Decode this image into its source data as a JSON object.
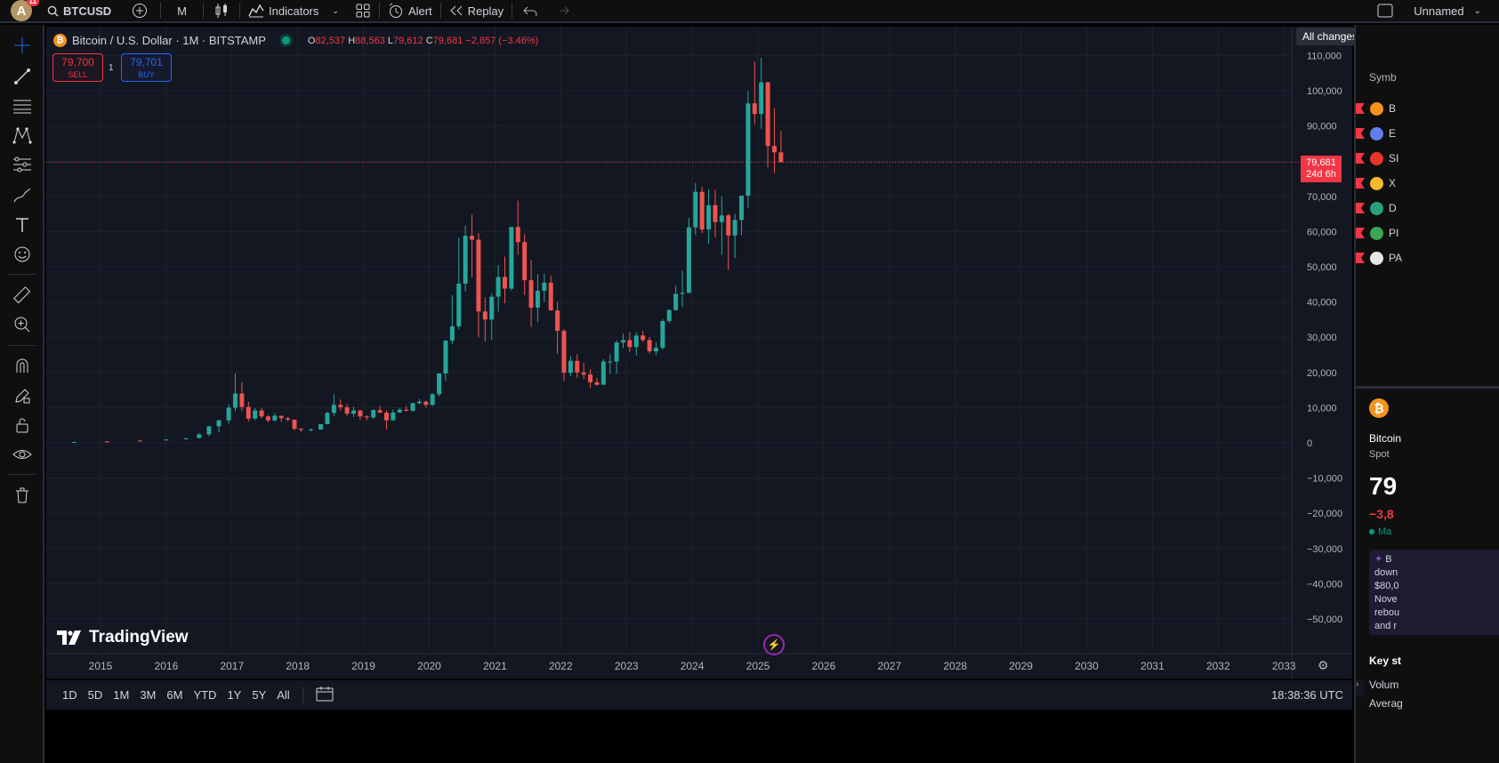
{
  "topbar": {
    "avatar_letter": "A",
    "avatar_badge": "11",
    "symbol": "BTCUSD",
    "interval": "M",
    "indicators": "Indicators",
    "alert": "Alert",
    "replay": "Replay",
    "layout_name": "Unnamed"
  },
  "save_status": "All changes saved",
  "legend": {
    "title": "Bitcoin / U.S. Dollar · 1M · BITSTAMP",
    "open_k": "O",
    "open": "82,537",
    "high_k": "H",
    "high": "88,563",
    "low_k": "L",
    "low": "79,612",
    "close_k": "C",
    "close": "79,681",
    "change": "−2,857 (−3.46%)"
  },
  "trade": {
    "sell_price": "79,700",
    "sell_label": "SELL",
    "buy_price": "79,701",
    "buy_label": "BUY",
    "quantity": "1"
  },
  "price_tag": {
    "price": "79,681",
    "countdown": "24d 6h"
  },
  "brand": "TradingView",
  "range_buttons": [
    "1D",
    "5D",
    "1M",
    "3M",
    "6M",
    "YTD",
    "1Y",
    "5Y",
    "All"
  ],
  "clock": "18:38:36 UTC",
  "chart_data": {
    "type": "candlestick",
    "y_ticks": [
      110000,
      100000,
      90000,
      80000,
      70000,
      60000,
      50000,
      40000,
      30000,
      20000,
      10000,
      0,
      -10000,
      -20000,
      -30000,
      -40000,
      -50000
    ],
    "y_tick_labels": [
      "110,000",
      "100,000",
      "90,000",
      "70,000",
      "60,000",
      "50,000",
      "40,000",
      "30,000",
      "20,000",
      "10,000",
      "0",
      "−10,000",
      "−20,000",
      "−30,000",
      "−40,000",
      "−50,000"
    ],
    "x_labels": [
      "2015",
      "2016",
      "2017",
      "2018",
      "2019",
      "2020",
      "2021",
      "2022",
      "2023",
      "2024",
      "2025",
      "2026",
      "2027",
      "2028",
      "2029",
      "2030",
      "2031",
      "2032",
      "2033"
    ],
    "x_label_years": [
      2015,
      2016,
      2017,
      2018,
      2019,
      2020,
      2021,
      2022,
      2023,
      2024,
      2025,
      2026,
      2027,
      2028,
      2029,
      2030,
      2031,
      2032,
      2033
    ],
    "current_price": 79681,
    "up_color": "#26a69a",
    "down_color": "#ef5350",
    "candles_quarterly_approx": [
      {
        "t": 2014.3,
        "o": 450,
        "h": 650,
        "l": 350,
        "c": 400
      },
      {
        "t": 2014.6,
        "o": 400,
        "h": 500,
        "l": 300,
        "c": 350
      },
      {
        "t": 2015.0,
        "o": 320,
        "h": 330,
        "l": 170,
        "c": 230
      },
      {
        "t": 2015.5,
        "o": 250,
        "h": 300,
        "l": 200,
        "c": 260
      },
      {
        "t": 2016.0,
        "o": 430,
        "h": 500,
        "l": 360,
        "c": 420
      },
      {
        "t": 2016.5,
        "o": 650,
        "h": 780,
        "l": 520,
        "c": 620
      },
      {
        "t": 2016.9,
        "o": 750,
        "h": 980,
        "l": 700,
        "c": 960
      },
      {
        "t": 2017.2,
        "o": 1050,
        "h": 1350,
        "l": 900,
        "c": 1300
      },
      {
        "t": 2017.4,
        "o": 1400,
        "h": 2800,
        "l": 1300,
        "c": 2400
      },
      {
        "t": 2017.55,
        "o": 2450,
        "h": 4800,
        "l": 1800,
        "c": 4700
      },
      {
        "t": 2017.7,
        "o": 4700,
        "h": 6500,
        "l": 3000,
        "c": 6400
      },
      {
        "t": 2017.85,
        "o": 6400,
        "h": 11000,
        "l": 5500,
        "c": 10000
      },
      {
        "t": 2017.95,
        "o": 10000,
        "h": 19700,
        "l": 9000,
        "c": 14000
      },
      {
        "t": 2018.05,
        "o": 14000,
        "h": 17200,
        "l": 9000,
        "c": 10200
      },
      {
        "t": 2018.15,
        "o": 10200,
        "h": 11700,
        "l": 6000,
        "c": 6900
      },
      {
        "t": 2018.25,
        "o": 6900,
        "h": 9900,
        "l": 6500,
        "c": 9200
      },
      {
        "t": 2018.35,
        "o": 9200,
        "h": 9900,
        "l": 7000,
        "c": 7500
      },
      {
        "t": 2018.45,
        "o": 7500,
        "h": 7800,
        "l": 5800,
        "c": 6400
      },
      {
        "t": 2018.55,
        "o": 6400,
        "h": 8500,
        "l": 6000,
        "c": 7700
      },
      {
        "t": 2018.65,
        "o": 7700,
        "h": 7700,
        "l": 5900,
        "c": 7000
      },
      {
        "t": 2018.75,
        "o": 7000,
        "h": 7400,
        "l": 6100,
        "c": 6600
      },
      {
        "t": 2018.85,
        "o": 6600,
        "h": 6600,
        "l": 3500,
        "c": 4000
      },
      {
        "t": 2018.95,
        "o": 4000,
        "h": 4200,
        "l": 3100,
        "c": 3700
      },
      {
        "t": 2019.1,
        "o": 3700,
        "h": 4100,
        "l": 3300,
        "c": 3800
      },
      {
        "t": 2019.25,
        "o": 3800,
        "h": 5300,
        "l": 3800,
        "c": 5300
      },
      {
        "t": 2019.35,
        "o": 5300,
        "h": 8900,
        "l": 5300,
        "c": 8500
      },
      {
        "t": 2019.45,
        "o": 8500,
        "h": 13800,
        "l": 7500,
        "c": 10800
      },
      {
        "t": 2019.55,
        "o": 10800,
        "h": 12300,
        "l": 9100,
        "c": 10100
      },
      {
        "t": 2019.65,
        "o": 10100,
        "h": 10900,
        "l": 7700,
        "c": 8300
      },
      {
        "t": 2019.75,
        "o": 8300,
        "h": 10300,
        "l": 7300,
        "c": 9200
      },
      {
        "t": 2019.85,
        "o": 9200,
        "h": 9300,
        "l": 6500,
        "c": 7500
      },
      {
        "t": 2019.95,
        "o": 7500,
        "h": 7800,
        "l": 6400,
        "c": 7200
      },
      {
        "t": 2020.05,
        "o": 7200,
        "h": 9600,
        "l": 6900,
        "c": 9300
      },
      {
        "t": 2020.15,
        "o": 9300,
        "h": 10500,
        "l": 8400,
        "c": 8600
      },
      {
        "t": 2020.25,
        "o": 8600,
        "h": 9200,
        "l": 3800,
        "c": 6400
      },
      {
        "t": 2020.35,
        "o": 6400,
        "h": 9500,
        "l": 6400,
        "c": 8600
      },
      {
        "t": 2020.45,
        "o": 8600,
        "h": 10000,
        "l": 8600,
        "c": 9400
      },
      {
        "t": 2020.55,
        "o": 9400,
        "h": 10400,
        "l": 8900,
        "c": 9100
      },
      {
        "t": 2020.65,
        "o": 9100,
        "h": 11400,
        "l": 8900,
        "c": 11300
      },
      {
        "t": 2020.75,
        "o": 11300,
        "h": 12500,
        "l": 10900,
        "c": 11700
      },
      {
        "t": 2020.85,
        "o": 11700,
        "h": 12000,
        "l": 10000,
        "c": 10800
      },
      {
        "t": 2020.95,
        "o": 10800,
        "h": 14100,
        "l": 10500,
        "c": 13800
      },
      {
        "t": 2021.05,
        "o": 13800,
        "h": 19800,
        "l": 13200,
        "c": 19700
      },
      {
        "t": 2021.15,
        "o": 19700,
        "h": 29300,
        "l": 17600,
        "c": 29000
      },
      {
        "t": 2021.25,
        "o": 29000,
        "h": 41900,
        "l": 28100,
        "c": 33100
      },
      {
        "t": 2021.35,
        "o": 33100,
        "h": 58300,
        "l": 32300,
        "c": 45200
      },
      {
        "t": 2021.45,
        "o": 45200,
        "h": 61700,
        "l": 43000,
        "c": 58800
      },
      {
        "t": 2021.55,
        "o": 58800,
        "h": 64800,
        "l": 47000,
        "c": 57700
      },
      {
        "t": 2021.65,
        "o": 57700,
        "h": 59600,
        "l": 30000,
        "c": 37300
      },
      {
        "t": 2021.75,
        "o": 37300,
        "h": 41300,
        "l": 28800,
        "c": 35000
      },
      {
        "t": 2021.85,
        "o": 35000,
        "h": 42400,
        "l": 29200,
        "c": 41500
      },
      {
        "t": 2021.95,
        "o": 41500,
        "h": 50500,
        "l": 37300,
        "c": 47100
      },
      {
        "t": 2022.05,
        "o": 47100,
        "h": 52900,
        "l": 39600,
        "c": 43800
      },
      {
        "t": 2022.15,
        "o": 43800,
        "h": 55400,
        "l": 43300,
        "c": 61300
      },
      {
        "t": 2022.25,
        "o": 61300,
        "h": 68800,
        "l": 53400,
        "c": 57000
      },
      {
        "t": 2022.35,
        "o": 57000,
        "h": 59200,
        "l": 42000,
        "c": 46200
      },
      {
        "t": 2022.45,
        "o": 46200,
        "h": 51900,
        "l": 32900,
        "c": 38400
      },
      {
        "t": 2022.55,
        "o": 38400,
        "h": 47900,
        "l": 34300,
        "c": 43200
      },
      {
        "t": 2022.65,
        "o": 43200,
        "h": 48000,
        "l": 40000,
        "c": 45500
      },
      {
        "t": 2022.75,
        "o": 45500,
        "h": 47500,
        "l": 37700,
        "c": 37600
      },
      {
        "t": 2022.85,
        "o": 37600,
        "h": 40000,
        "l": 25300,
        "c": 31800
      },
      {
        "t": 2022.95,
        "o": 31800,
        "h": 32300,
        "l": 17600,
        "c": 19900
      },
      {
        "t": 2023.05,
        "o": 19900,
        "h": 24700,
        "l": 18900,
        "c": 23300
      },
      {
        "t": 2023.15,
        "o": 23300,
        "h": 25200,
        "l": 18500,
        "c": 20000
      },
      {
        "t": 2023.25,
        "o": 20000,
        "h": 22700,
        "l": 18100,
        "c": 19400
      },
      {
        "t": 2023.35,
        "o": 19400,
        "h": 20900,
        "l": 15500,
        "c": 17200
      },
      {
        "t": 2023.45,
        "o": 17200,
        "h": 18400,
        "l": 16200,
        "c": 16500
      },
      {
        "t": 2023.55,
        "o": 16500,
        "h": 23800,
        "l": 16500,
        "c": 23100
      },
      {
        "t": 2023.65,
        "o": 23100,
        "h": 25200,
        "l": 19600,
        "c": 23100
      },
      {
        "t": 2023.75,
        "o": 23100,
        "h": 29100,
        "l": 19600,
        "c": 28500
      },
      {
        "t": 2023.85,
        "o": 28500,
        "h": 31000,
        "l": 26900,
        "c": 29200
      },
      {
        "t": 2023.95,
        "o": 29200,
        "h": 31400,
        "l": 25800,
        "c": 27200
      },
      {
        "t": 2024.05,
        "o": 27200,
        "h": 31400,
        "l": 24800,
        "c": 30500
      },
      {
        "t": 2024.15,
        "o": 30500,
        "h": 31800,
        "l": 28600,
        "c": 29200
      },
      {
        "t": 2024.25,
        "o": 29200,
        "h": 30100,
        "l": 25400,
        "c": 26000
      },
      {
        "t": 2024.35,
        "o": 26000,
        "h": 28600,
        "l": 24900,
        "c": 27000
      },
      {
        "t": 2024.45,
        "o": 27000,
        "h": 35200,
        "l": 26500,
        "c": 34600
      },
      {
        "t": 2024.55,
        "o": 34600,
        "h": 38000,
        "l": 34000,
        "c": 37700
      },
      {
        "t": 2024.65,
        "o": 37700,
        "h": 44700,
        "l": 37600,
        "c": 42300
      },
      {
        "t": 2024.75,
        "o": 42300,
        "h": 48900,
        "l": 38500,
        "c": 42600
      },
      {
        "t": 2024.85,
        "o": 42600,
        "h": 63900,
        "l": 42500,
        "c": 61200
      },
      {
        "t": 2024.95,
        "o": 61200,
        "h": 73800,
        "l": 59000,
        "c": 71300
      },
      {
        "t": 2025.05,
        "o": 71300,
        "h": 72700,
        "l": 59600,
        "c": 60600
      },
      {
        "t": 2025.15,
        "o": 60600,
        "h": 72000,
        "l": 56500,
        "c": 67500
      },
      {
        "t": 2025.25,
        "o": 67500,
        "h": 71900,
        "l": 58400,
        "c": 62700
      },
      {
        "t": 2025.35,
        "o": 62700,
        "h": 70000,
        "l": 53400,
        "c": 64600
      },
      {
        "t": 2025.45,
        "o": 64600,
        "h": 65100,
        "l": 49100,
        "c": 58900
      },
      {
        "t": 2025.55,
        "o": 58900,
        "h": 65000,
        "l": 52500,
        "c": 63300
      },
      {
        "t": 2025.65,
        "o": 63300,
        "h": 69500,
        "l": 58900,
        "c": 70200
      },
      {
        "t": 2025.75,
        "o": 70200,
        "h": 99800,
        "l": 66800,
        "c": 96400
      },
      {
        "t": 2025.85,
        "o": 96400,
        "h": 108300,
        "l": 90500,
        "c": 93400
      },
      {
        "t": 2025.95,
        "o": 93400,
        "h": 109300,
        "l": 89200,
        "c": 102400
      },
      {
        "t": 2026.05,
        "o": 102400,
        "h": 102500,
        "l": 78200,
        "c": 84300
      },
      {
        "t": 2026.15,
        "o": 84300,
        "h": 95000,
        "l": 76600,
        "c": 82500
      },
      {
        "t": 2026.25,
        "o": 82500,
        "h": 88600,
        "l": 79600,
        "c": 79700
      }
    ]
  },
  "watchlist": {
    "header": "Symb",
    "rows": [
      {
        "label": "B",
        "color": "#f7931a"
      },
      {
        "label": "E",
        "color": "#627eea"
      },
      {
        "label": "SI",
        "color": "#e8342b"
      },
      {
        "label": "X",
        "color": "#f3ba2f"
      },
      {
        "label": "D",
        "color": "#26a17b"
      },
      {
        "label": "PI",
        "color": "#3aa655"
      },
      {
        "label": "PA",
        "color": "#e8e8e8"
      }
    ]
  },
  "details": {
    "name": "Bitcoin",
    "type": "Spot",
    "price": "79",
    "change": "−3,8",
    "market": "Ma",
    "news": [
      "B",
      "down",
      "$80,0",
      "Nove",
      "rebou",
      "and r"
    ],
    "key_stats": "Key st",
    "volume": "Volum",
    "average": "Averag"
  }
}
